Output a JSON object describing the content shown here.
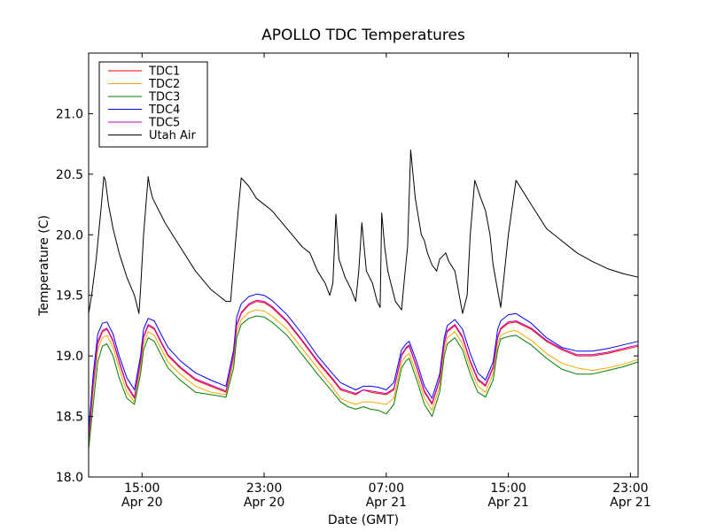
{
  "chart_data": {
    "type": "line",
    "title": "APOLLO TDC Temperatures",
    "xlabel": "Date (GMT)",
    "ylabel": "Temperature (C)",
    "x_unit": "hours since Apr 20 11:30 GMT",
    "xlim": [
      0,
      36
    ],
    "ylim": [
      18.0,
      21.5
    ],
    "grid": false,
    "legend_position": "upper-left",
    "y_ticks": [
      18.0,
      18.5,
      19.0,
      19.5,
      20.0,
      20.5,
      21.0
    ],
    "y_tick_labels": [
      "18.0",
      "18.5",
      "19.0",
      "19.5",
      "20.0",
      "20.5",
      "21.0"
    ],
    "x_ticks": [
      {
        "x": 3.5,
        "time": "15:00",
        "date": "Apr 20"
      },
      {
        "x": 11.5,
        "time": "23:00",
        "date": "Apr 20"
      },
      {
        "x": 19.5,
        "time": "07:00",
        "date": "Apr 21"
      },
      {
        "x": 27.5,
        "time": "15:00",
        "date": "Apr 21"
      },
      {
        "x": 35.5,
        "time": "23:00",
        "date": "Apr 21"
      }
    ],
    "series": [
      {
        "name": "TDC1",
        "color": "#ff0000",
        "x": [
          0,
          0.3,
          0.6,
          0.9,
          1.2,
          1.6,
          2.0,
          2.5,
          3.0,
          3.4,
          3.6,
          3.9,
          4.3,
          4.7,
          5.2,
          6.0,
          7.0,
          8.0,
          9.0,
          9.5,
          9.7,
          10.0,
          10.5,
          11.0,
          11.5,
          12.0,
          13.0,
          14.0,
          15.0,
          16.0,
          16.5,
          17.0,
          17.5,
          18.0,
          18.5,
          19.0,
          19.5,
          20.0,
          20.5,
          20.8,
          21.0,
          21.5,
          22.0,
          22.5,
          23.0,
          23.3,
          23.5,
          24.0,
          24.5,
          25.0,
          25.5,
          26.0,
          26.5,
          26.8,
          27.0,
          27.5,
          28.0,
          29.0,
          30.0,
          31.0,
          32.0,
          33.0,
          34.0,
          35.0,
          36.0
        ],
        "y": [
          18.3,
          18.75,
          19.1,
          19.2,
          19.22,
          19.12,
          18.95,
          18.75,
          18.65,
          18.95,
          19.15,
          19.25,
          19.22,
          19.12,
          19.0,
          18.9,
          18.8,
          18.75,
          18.7,
          19.0,
          19.25,
          19.35,
          19.42,
          19.45,
          19.44,
          19.4,
          19.28,
          19.12,
          18.95,
          18.8,
          18.72,
          18.7,
          18.68,
          18.72,
          18.7,
          18.69,
          18.68,
          18.72,
          19.0,
          19.06,
          19.08,
          18.9,
          18.7,
          18.6,
          18.8,
          19.1,
          19.2,
          19.25,
          19.15,
          18.95,
          18.8,
          18.75,
          18.9,
          19.15,
          19.22,
          19.27,
          19.28,
          19.22,
          19.12,
          19.05,
          19.0,
          19.0,
          19.02,
          19.05,
          19.08
        ]
      },
      {
        "name": "TDC2",
        "color": "#ffa500",
        "x": [
          0,
          0.3,
          0.6,
          0.9,
          1.2,
          1.6,
          2.0,
          2.5,
          3.0,
          3.4,
          3.6,
          3.9,
          4.3,
          4.7,
          5.2,
          6.0,
          7.0,
          8.0,
          9.0,
          9.5,
          9.7,
          10.0,
          10.5,
          11.0,
          11.5,
          12.0,
          13.0,
          14.0,
          15.0,
          16.0,
          16.5,
          17.0,
          17.5,
          18.0,
          18.5,
          19.0,
          19.5,
          20.0,
          20.5,
          20.8,
          21.0,
          21.5,
          22.0,
          22.5,
          23.0,
          23.3,
          23.5,
          24.0,
          24.5,
          25.0,
          25.5,
          26.0,
          26.5,
          26.8,
          27.0,
          27.5,
          28.0,
          29.0,
          30.0,
          31.0,
          32.0,
          33.0,
          34.0,
          35.0,
          36.0
        ],
        "y": [
          18.26,
          18.7,
          19.05,
          19.15,
          19.17,
          19.07,
          18.9,
          18.7,
          18.62,
          18.9,
          19.1,
          19.2,
          19.17,
          19.07,
          18.95,
          18.85,
          18.75,
          18.7,
          18.68,
          18.95,
          19.2,
          19.3,
          19.36,
          19.38,
          19.37,
          19.33,
          19.22,
          19.06,
          18.9,
          18.74,
          18.65,
          18.62,
          18.6,
          18.62,
          18.62,
          18.61,
          18.6,
          18.65,
          18.95,
          19.0,
          19.02,
          18.85,
          18.65,
          18.55,
          18.75,
          19.05,
          19.15,
          19.2,
          19.1,
          18.9,
          18.75,
          18.7,
          18.85,
          19.1,
          19.17,
          19.2,
          19.21,
          19.13,
          19.02,
          18.94,
          18.9,
          18.88,
          18.9,
          18.93,
          18.97
        ]
      },
      {
        "name": "TDC3",
        "color": "#008000",
        "x": [
          0,
          0.3,
          0.6,
          0.9,
          1.2,
          1.6,
          2.0,
          2.5,
          3.0,
          3.4,
          3.6,
          3.9,
          4.3,
          4.7,
          5.2,
          6.0,
          7.0,
          8.0,
          9.0,
          9.5,
          9.7,
          10.0,
          10.5,
          11.0,
          11.5,
          12.0,
          13.0,
          14.0,
          15.0,
          16.0,
          16.5,
          17.0,
          17.5,
          18.0,
          18.5,
          19.0,
          19.5,
          20.0,
          20.5,
          20.8,
          21.0,
          21.5,
          22.0,
          22.5,
          23.0,
          23.3,
          23.5,
          24.0,
          24.5,
          25.0,
          25.5,
          26.0,
          26.5,
          26.8,
          27.0,
          27.5,
          28.0,
          29.0,
          30.0,
          31.0,
          32.0,
          33.0,
          34.0,
          35.0,
          36.0
        ],
        "y": [
          18.23,
          18.6,
          18.95,
          19.08,
          19.1,
          19.0,
          18.82,
          18.65,
          18.6,
          18.85,
          19.05,
          19.15,
          19.12,
          19.02,
          18.9,
          18.8,
          18.7,
          18.68,
          18.66,
          18.9,
          19.15,
          19.26,
          19.31,
          19.33,
          19.32,
          19.28,
          19.17,
          19.01,
          18.85,
          18.7,
          18.62,
          18.58,
          18.56,
          18.58,
          18.56,
          18.55,
          18.52,
          18.6,
          18.9,
          18.96,
          18.98,
          18.8,
          18.6,
          18.5,
          18.7,
          19.0,
          19.1,
          19.15,
          19.05,
          18.85,
          18.7,
          18.66,
          18.8,
          19.05,
          19.14,
          19.16,
          19.17,
          19.09,
          18.98,
          18.89,
          18.85,
          18.85,
          18.88,
          18.91,
          18.95
        ]
      },
      {
        "name": "TDC4",
        "color": "#0000ff",
        "x": [
          0,
          0.3,
          0.6,
          0.9,
          1.2,
          1.6,
          2.0,
          2.5,
          3.0,
          3.4,
          3.6,
          3.9,
          4.3,
          4.7,
          5.2,
          6.0,
          7.0,
          8.0,
          9.0,
          9.5,
          9.7,
          10.0,
          10.5,
          11.0,
          11.5,
          12.0,
          13.0,
          14.0,
          15.0,
          16.0,
          16.5,
          17.0,
          17.5,
          18.0,
          18.5,
          19.0,
          19.5,
          20.0,
          20.5,
          20.8,
          21.0,
          21.5,
          22.0,
          22.5,
          23.0,
          23.3,
          23.5,
          24.0,
          24.5,
          25.0,
          25.5,
          26.0,
          26.5,
          26.8,
          27.0,
          27.5,
          28.0,
          29.0,
          30.0,
          31.0,
          32.0,
          33.0,
          34.0,
          35.0,
          36.0
        ],
        "y": [
          18.38,
          18.85,
          19.18,
          19.27,
          19.28,
          19.18,
          19.0,
          18.82,
          18.72,
          19.0,
          19.22,
          19.31,
          19.29,
          19.19,
          19.07,
          18.96,
          18.86,
          18.8,
          18.75,
          19.05,
          19.32,
          19.43,
          19.49,
          19.51,
          19.5,
          19.46,
          19.34,
          19.18,
          19.0,
          18.85,
          18.78,
          18.75,
          18.72,
          18.75,
          18.75,
          18.74,
          18.72,
          18.78,
          19.05,
          19.1,
          19.12,
          18.95,
          18.75,
          18.65,
          18.85,
          19.15,
          19.25,
          19.3,
          19.22,
          19.02,
          18.86,
          18.8,
          18.95,
          19.22,
          19.29,
          19.34,
          19.35,
          19.27,
          19.15,
          19.07,
          19.04,
          19.04,
          19.06,
          19.09,
          19.12
        ]
      },
      {
        "name": "TDC5",
        "color": "#bf00bf",
        "x": [
          0,
          0.3,
          0.6,
          0.9,
          1.2,
          1.6,
          2.0,
          2.5,
          3.0,
          3.4,
          3.6,
          3.9,
          4.3,
          4.7,
          5.2,
          6.0,
          7.0,
          8.0,
          9.0,
          9.5,
          9.7,
          10.0,
          10.5,
          11.0,
          11.5,
          12.0,
          13.0,
          14.0,
          15.0,
          16.0,
          16.5,
          17.0,
          17.5,
          18.0,
          18.5,
          19.0,
          19.5,
          20.0,
          20.5,
          20.8,
          21.0,
          21.5,
          22.0,
          22.5,
          23.0,
          23.3,
          23.5,
          24.0,
          24.5,
          25.0,
          25.5,
          26.0,
          26.5,
          26.8,
          27.0,
          27.5,
          28.0,
          29.0,
          30.0,
          31.0,
          32.0,
          33.0,
          34.0,
          35.0,
          36.0
        ],
        "y": [
          18.31,
          18.77,
          19.12,
          19.21,
          19.23,
          19.13,
          18.96,
          18.76,
          18.66,
          18.96,
          19.16,
          19.26,
          19.23,
          19.13,
          19.01,
          18.91,
          18.81,
          18.76,
          18.71,
          19.01,
          19.26,
          19.36,
          19.43,
          19.46,
          19.45,
          19.41,
          19.29,
          19.13,
          18.96,
          18.81,
          18.73,
          18.71,
          18.69,
          18.72,
          18.71,
          18.7,
          18.69,
          18.73,
          19.01,
          19.07,
          19.09,
          18.91,
          18.71,
          18.61,
          18.81,
          19.11,
          19.21,
          19.26,
          19.16,
          18.96,
          18.81,
          18.76,
          18.91,
          19.16,
          19.23,
          19.28,
          19.29,
          19.23,
          19.13,
          19.06,
          19.01,
          19.01,
          19.03,
          19.06,
          19.09
        ]
      },
      {
        "name": "Utah Air",
        "color": "#000000",
        "x": [
          0,
          0.2,
          0.5,
          0.8,
          1.0,
          1.1,
          1.3,
          1.6,
          2.0,
          2.5,
          3.0,
          3.3,
          3.4,
          3.6,
          3.9,
          4.0,
          4.2,
          4.6,
          5.0,
          6.0,
          7.0,
          8.0,
          9.0,
          9.3,
          9.5,
          9.8,
          10.0,
          10.5,
          11.0,
          12.0,
          13.0,
          14.0,
          14.5,
          15.0,
          15.5,
          15.8,
          16.0,
          16.2,
          16.4,
          16.8,
          17.2,
          17.5,
          17.7,
          17.9,
          18.2,
          18.6,
          18.9,
          19.1,
          19.2,
          19.4,
          19.6,
          19.8,
          20.1,
          20.5,
          20.7,
          20.9,
          21.1,
          21.4,
          21.8,
          22.0,
          22.2,
          22.5,
          22.8,
          23.0,
          23.4,
          23.6,
          24.0,
          24.5,
          24.8,
          25.0,
          25.3,
          25.7,
          26.0,
          26.3,
          26.5,
          27.0,
          27.5,
          28.0,
          29.0,
          30.0,
          31.0,
          32.0,
          33.0,
          34.0,
          35.0,
          36.0
        ],
        "y": [
          19.35,
          19.5,
          19.8,
          20.2,
          20.48,
          20.45,
          20.25,
          20.05,
          19.85,
          19.65,
          19.5,
          19.35,
          19.55,
          20.0,
          20.48,
          20.4,
          20.3,
          20.2,
          20.1,
          19.9,
          19.7,
          19.55,
          19.45,
          19.45,
          19.75,
          20.2,
          20.47,
          20.4,
          20.3,
          20.2,
          20.05,
          19.9,
          19.85,
          19.7,
          19.6,
          19.5,
          19.6,
          20.17,
          19.8,
          19.65,
          19.55,
          19.45,
          19.7,
          20.1,
          19.7,
          19.6,
          19.45,
          19.4,
          20.18,
          19.9,
          19.7,
          19.6,
          19.45,
          19.38,
          19.65,
          19.9,
          20.7,
          20.3,
          20.0,
          19.95,
          19.85,
          19.75,
          19.7,
          19.8,
          19.85,
          19.78,
          19.7,
          19.35,
          19.5,
          20.0,
          20.45,
          20.3,
          20.2,
          20.0,
          19.75,
          19.4,
          20.0,
          20.45,
          20.25,
          20.05,
          19.95,
          19.85,
          19.78,
          19.72,
          19.68,
          19.65
        ]
      }
    ]
  }
}
